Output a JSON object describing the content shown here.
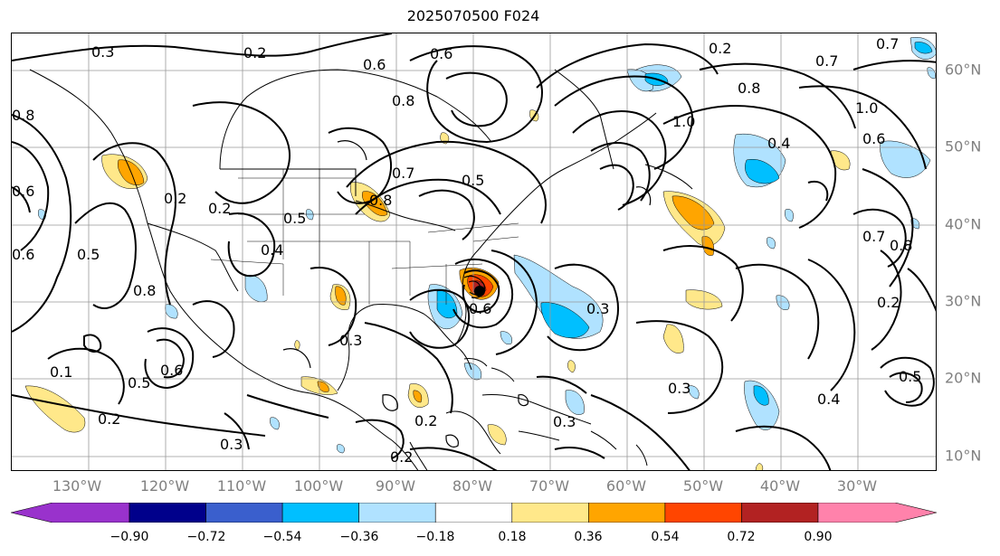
{
  "title": "2025070500 F024",
  "lon_labels": [
    "130°W",
    "120°W",
    "110°W",
    "100°W",
    "90°W",
    "80°W",
    "70°W",
    "60°W",
    "50°W",
    "40°W",
    "30°W"
  ],
  "lat_labels": [
    "60°N",
    "50°N",
    "40°N",
    "30°N",
    "20°N",
    "10°N"
  ],
  "colorbar": {
    "ticks": [
      "−0.90",
      "−0.72",
      "−0.54",
      "−0.36",
      "−0.18",
      "0.18",
      "0.36",
      "0.54",
      "0.72",
      "0.90"
    ],
    "colors": [
      "#9932cc",
      "#00008b",
      "#3a5fcd",
      "#00bfff",
      "#b0e2ff",
      "#ffffff",
      "#ffe88a",
      "#ffa500",
      "#ff4500",
      "#b22222",
      "#ff82ab"
    ]
  },
  "contour_labels": [
    {
      "text": "0.3"
    },
    {
      "text": "0.2"
    },
    {
      "text": "0.6"
    },
    {
      "text": "0.6"
    },
    {
      "text": "0.2"
    },
    {
      "text": "0.7"
    },
    {
      "text": "0.7"
    },
    {
      "text": "0.8"
    },
    {
      "text": "0.8"
    },
    {
      "text": "1.0"
    },
    {
      "text": "1.0"
    },
    {
      "text": "0.4"
    },
    {
      "text": "0.6"
    },
    {
      "text": "0.8"
    },
    {
      "text": "0.6"
    },
    {
      "text": "0.2"
    },
    {
      "text": "0.5"
    },
    {
      "text": "0.8"
    },
    {
      "text": "0.5"
    },
    {
      "text": "0.4"
    },
    {
      "text": "0.2"
    },
    {
      "text": "0.6"
    },
    {
      "text": "0.8"
    },
    {
      "text": "0.7"
    },
    {
      "text": "0.3"
    },
    {
      "text": "0.1"
    },
    {
      "text": "0.5"
    },
    {
      "text": "0.6"
    },
    {
      "text": "0.2"
    },
    {
      "text": "0.3"
    },
    {
      "text": "0.2"
    },
    {
      "text": "0.2"
    },
    {
      "text": "0.3"
    },
    {
      "text": "0.3"
    },
    {
      "text": "0.4"
    },
    {
      "text": "0.2"
    },
    {
      "text": "0.5"
    },
    {
      "text": "0.7"
    },
    {
      "text": "0.8"
    },
    {
      "text": "0.3"
    },
    {
      "text": "0.6"
    },
    {
      "text": "0.5"
    }
  ]
}
